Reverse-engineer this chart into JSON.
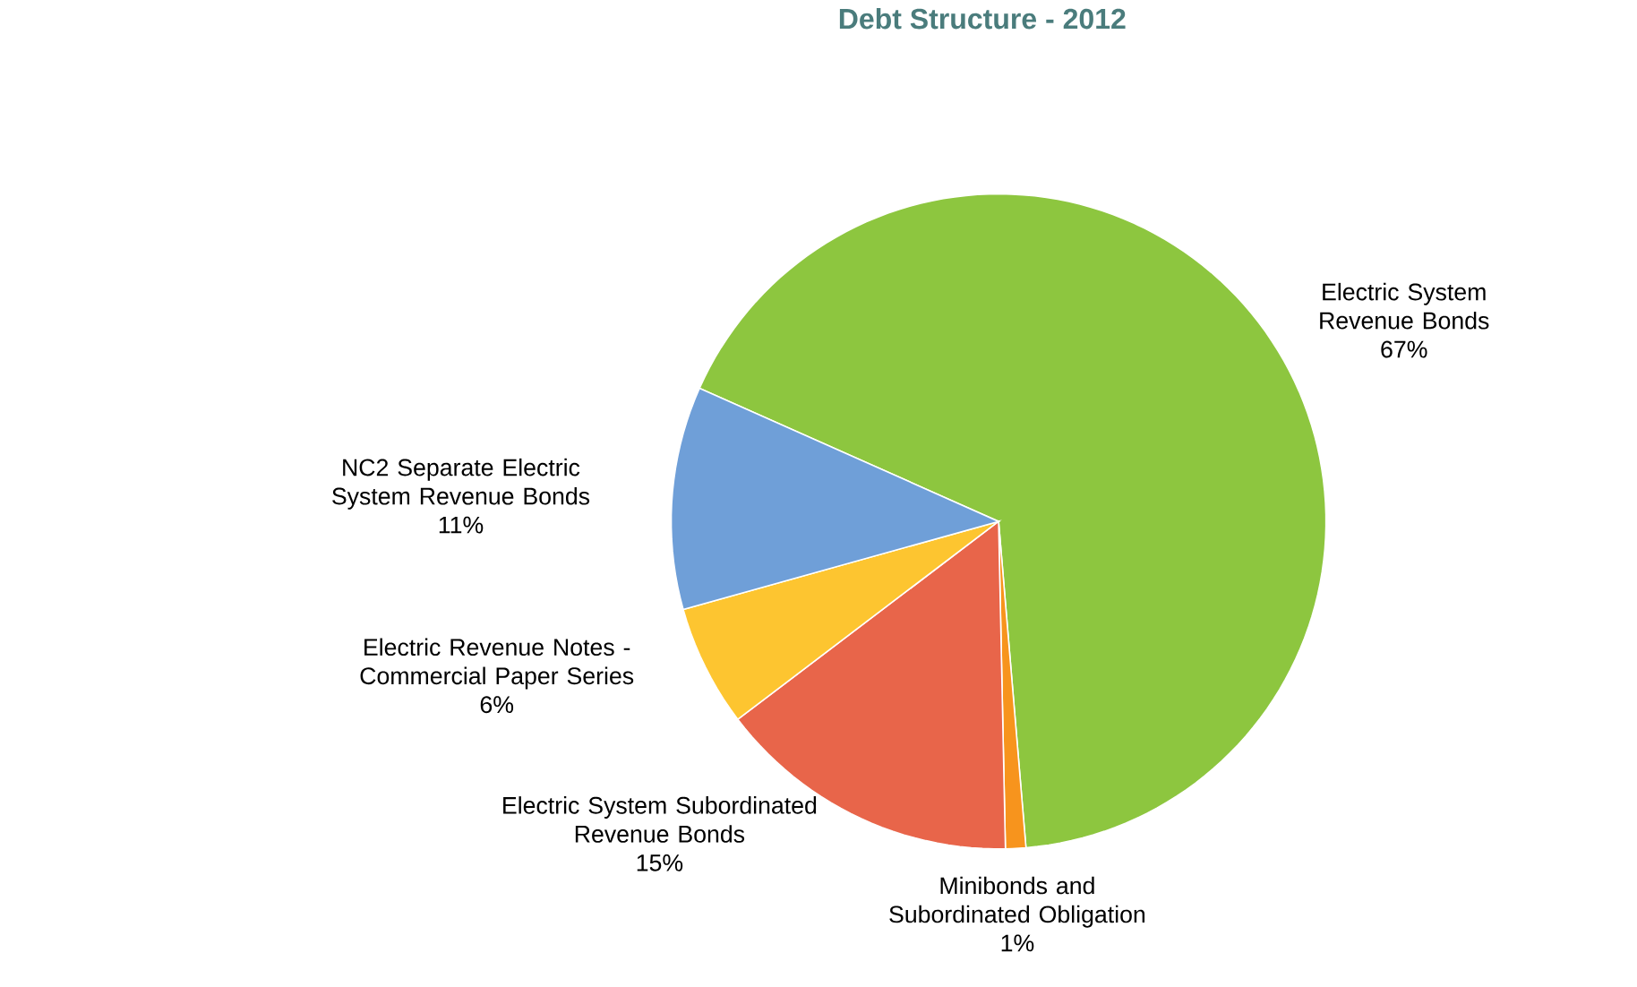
{
  "chart_data": {
    "type": "pie",
    "title": "Debt Structure - 2012",
    "categories": [
      "Electric System Revenue Bonds",
      "Minibonds and Subordinated Obligation",
      "Electric System Subordinated Revenue Bonds",
      "Electric Revenue Notes - Commercial Paper Series",
      "NC2 Separate Electric System Revenue Bonds"
    ],
    "values": [
      67,
      1,
      15,
      6,
      11
    ],
    "value_labels": [
      "67%",
      "1%",
      "15%",
      "6%",
      "11%"
    ],
    "colors": [
      "#8dc63f",
      "#f7941d",
      "#e8654a",
      "#fdc530",
      "#6f9fd8"
    ]
  }
}
